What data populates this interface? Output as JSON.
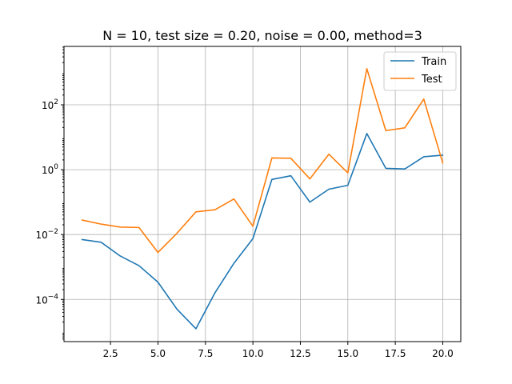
{
  "chart_data": {
    "type": "line",
    "title": "N = 10, test size = 0.20, noise = 0.00, method=3",
    "xlabel": "",
    "ylabel": "",
    "x": [
      1,
      2,
      3,
      4,
      5,
      6,
      7,
      8,
      9,
      10,
      11,
      12,
      13,
      14,
      15,
      16,
      17,
      18,
      19,
      20
    ],
    "xlim": [
      0.05,
      20.95
    ],
    "ylim_log10": [
      -5.3,
      3.8
    ],
    "yscale": "log",
    "grid": true,
    "legend_position": "top-right",
    "xticks": [
      2.5,
      5.0,
      7.5,
      10.0,
      12.5,
      15.0,
      17.5,
      20.0
    ],
    "xtick_labels": [
      "2.5",
      "5.0",
      "7.5",
      "10.0",
      "12.5",
      "15.0",
      "17.5",
      "20.0"
    ],
    "yticks_exp": [
      -4,
      -2,
      0,
      2
    ],
    "ytick_base": "10",
    "series": [
      {
        "name": "Train",
        "color": "#1f77b4",
        "values": [
          0.007,
          0.0058,
          0.0022,
          0.0011,
          0.00034,
          5e-05,
          1.25e-05,
          0.00016,
          0.0013,
          0.0075,
          0.5,
          0.65,
          0.1,
          0.25,
          0.33,
          13.0,
          1.1,
          1.05,
          2.5,
          2.8
        ]
      },
      {
        "name": "Test",
        "color": "#ff7f0e",
        "values": [
          0.028,
          0.021,
          0.017,
          0.0165,
          0.0028,
          0.011,
          0.05,
          0.058,
          0.125,
          0.018,
          2.3,
          2.25,
          0.52,
          3.0,
          0.8,
          1300,
          16,
          19.5,
          150,
          1.6
        ]
      }
    ]
  }
}
